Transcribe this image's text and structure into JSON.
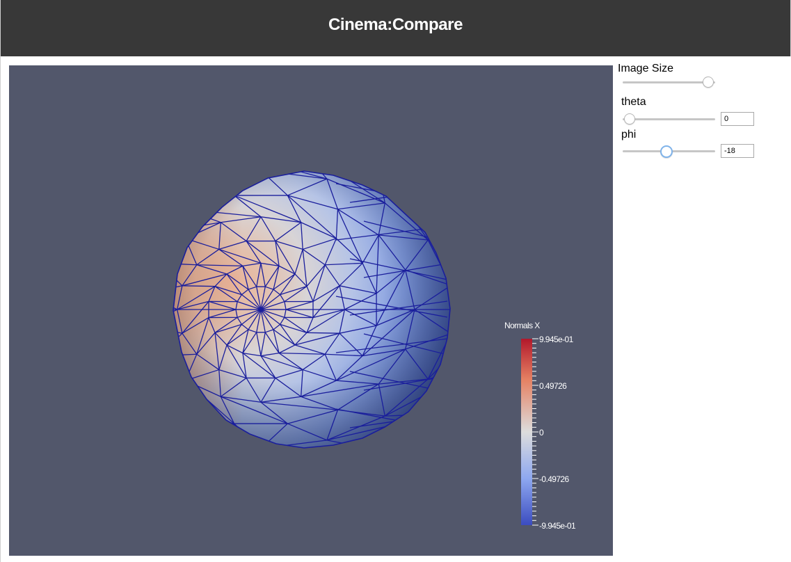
{
  "header": {
    "title": "Cinema:Compare"
  },
  "controls": {
    "image_size": {
      "label": "Image Size",
      "value_fraction": 0.92
    },
    "theta": {
      "label": "theta",
      "value": "0",
      "value_fraction": 0.0
    },
    "phi": {
      "label": "phi",
      "value": "-18",
      "value_fraction": 0.45
    }
  },
  "legend": {
    "title": "Normals X",
    "ticks": [
      "9.945e-01",
      "0.49726",
      "0",
      "-0.49726",
      "-9.945e-01"
    ],
    "colors": {
      "high": "#b2182b",
      "mid": "#dddddd",
      "low": "#3b4cc0"
    }
  },
  "scene": {
    "background": "#52576b",
    "wire_color": "#1a1e9c"
  }
}
